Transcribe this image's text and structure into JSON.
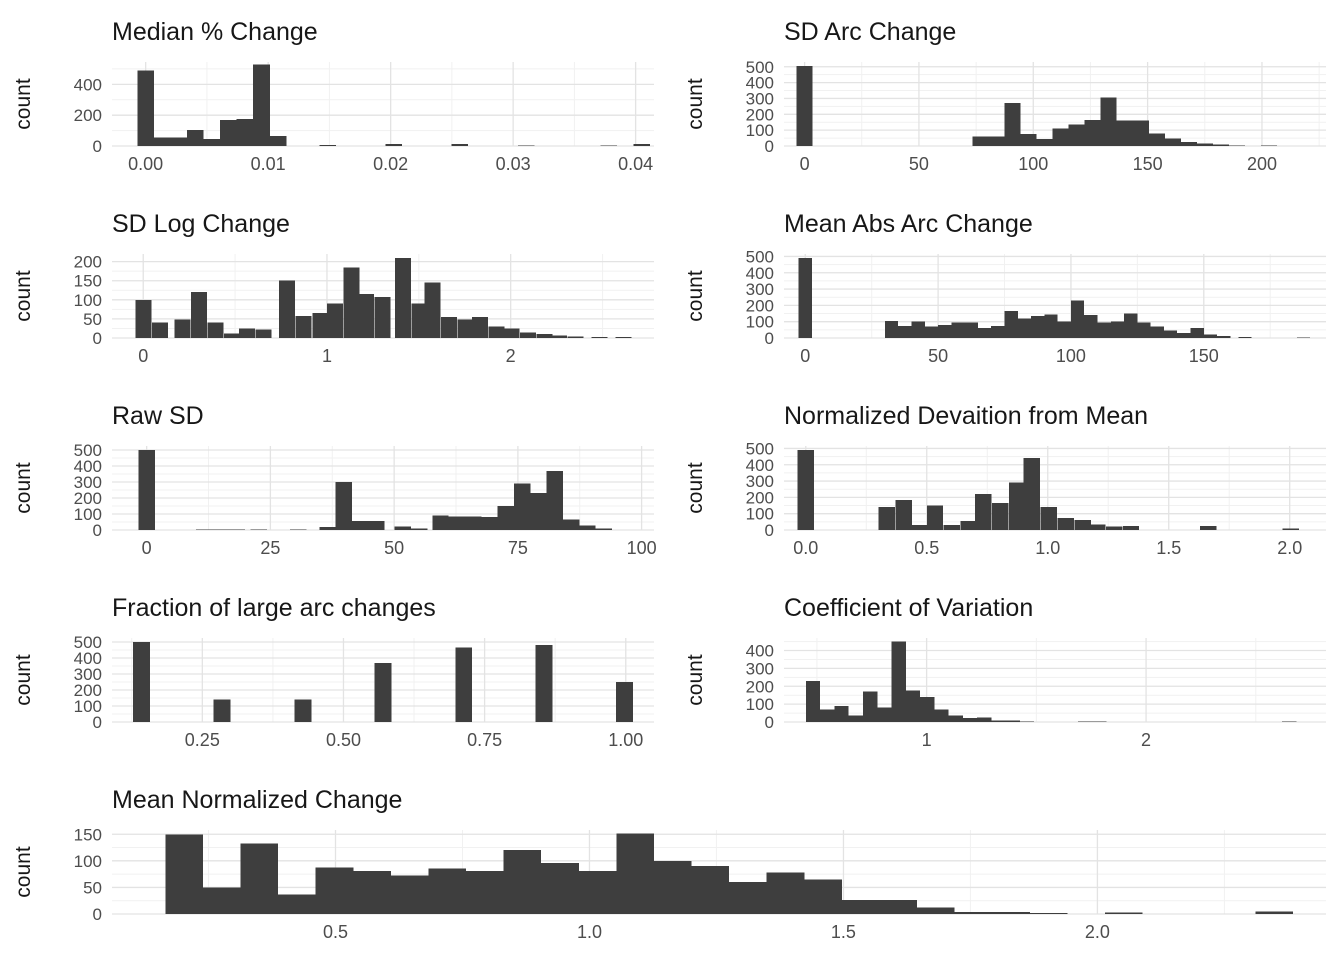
{
  "figure": {
    "description": "Grid of nine histograms of track-change summary statistics",
    "ylabel_shared": "count"
  },
  "colors": {
    "bar": "#3e3e3e",
    "grid_major": "#e3e3e3",
    "grid_minor": "#f1f1f1",
    "tick_text": "#4d4d4d",
    "title_text": "#171717",
    "axis_title_text": "#171717",
    "background": "#ffffff"
  },
  "chart_data": [
    {
      "type": "histogram",
      "title": "Median % Change",
      "ylabel": "count",
      "xlim": [
        -0.00275,
        0.0415
      ],
      "ylim": [
        0,
        545
      ],
      "x_ticks": [
        {
          "v": 0,
          "label": "0.00"
        },
        {
          "v": 0.01,
          "label": "0.01"
        },
        {
          "v": 0.02,
          "label": "0.02"
        },
        {
          "v": 0.03,
          "label": "0.03"
        },
        {
          "v": 0.04,
          "label": "0.04"
        }
      ],
      "y_ticks": [
        {
          "v": 0,
          "label": "0"
        },
        {
          "v": 200,
          "label": "200"
        },
        {
          "v": 400,
          "label": "400"
        }
      ],
      "x_minor_step": 0.005,
      "y_minor_step": 100,
      "bin_width": 0.00135,
      "bars": [
        [
          -0.000675,
          490
        ],
        [
          0.000675,
          55
        ],
        [
          0.00203,
          55
        ],
        [
          0.00338,
          105
        ],
        [
          0.00473,
          45
        ],
        [
          0.00608,
          170
        ],
        [
          0.00743,
          175
        ],
        [
          0.00878,
          530
        ],
        [
          0.01013,
          65
        ],
        [
          0.01418,
          8
        ],
        [
          0.01958,
          12
        ],
        [
          0.02498,
          12
        ],
        [
          0.03038,
          4
        ],
        [
          0.03713,
          4
        ],
        [
          0.03983,
          12
        ]
      ]
    },
    {
      "type": "histogram",
      "title": "SD Arc Change",
      "ylabel": "count",
      "xlim": [
        -9,
        228
      ],
      "ylim": [
        0,
        530
      ],
      "x_ticks": [
        {
          "v": 0,
          "label": "0"
        },
        {
          "v": 50,
          "label": "50"
        },
        {
          "v": 100,
          "label": "100"
        },
        {
          "v": 150,
          "label": "150"
        },
        {
          "v": 200,
          "label": "200"
        }
      ],
      "y_ticks": [
        {
          "v": 0,
          "label": "0"
        },
        {
          "v": 100,
          "label": "100"
        },
        {
          "v": 200,
          "label": "200"
        },
        {
          "v": 300,
          "label": "300"
        },
        {
          "v": 400,
          "label": "400"
        },
        {
          "v": 500,
          "label": "500"
        }
      ],
      "x_minor_step": 25,
      "y_minor_step": 50,
      "bin_width": 7,
      "bars": [
        [
          -3.5,
          505
        ],
        [
          73.5,
          60
        ],
        [
          80.5,
          60
        ],
        [
          87.5,
          270
        ],
        [
          94.5,
          75
        ],
        [
          101.5,
          45
        ],
        [
          108.5,
          110
        ],
        [
          115.5,
          135
        ],
        [
          122.5,
          165
        ],
        [
          129.5,
          305
        ],
        [
          136.5,
          160
        ],
        [
          143.5,
          160
        ],
        [
          150.5,
          80
        ],
        [
          157.5,
          48
        ],
        [
          164.5,
          25
        ],
        [
          171.5,
          15
        ],
        [
          178.5,
          8
        ],
        [
          185.5,
          4
        ],
        [
          199.5,
          3
        ]
      ]
    },
    {
      "type": "histogram",
      "title": "SD Log Change",
      "ylabel": "count",
      "xlim": [
        -0.17,
        2.78
      ],
      "ylim": [
        0,
        220
      ],
      "x_ticks": [
        {
          "v": 0,
          "label": "0"
        },
        {
          "v": 1,
          "label": "1"
        },
        {
          "v": 2,
          "label": "2"
        }
      ],
      "y_ticks": [
        {
          "v": 0,
          "label": "0"
        },
        {
          "v": 50,
          "label": "50"
        },
        {
          "v": 100,
          "label": "100"
        },
        {
          "v": 150,
          "label": "150"
        },
        {
          "v": 200,
          "label": "200"
        }
      ],
      "x_minor_step": 0.5,
      "y_minor_step": 25,
      "bin_width": 0.087,
      "bars": [
        [
          -0.043,
          100
        ],
        [
          0.047,
          40
        ],
        [
          0.17,
          48
        ],
        [
          0.26,
          120
        ],
        [
          0.35,
          40
        ],
        [
          0.44,
          12
        ],
        [
          0.52,
          25
        ],
        [
          0.61,
          22
        ],
        [
          0.74,
          150
        ],
        [
          0.83,
          58
        ],
        [
          0.92,
          65
        ],
        [
          1.0,
          90
        ],
        [
          1.09,
          185
        ],
        [
          1.17,
          115
        ],
        [
          1.26,
          108
        ],
        [
          1.37,
          210
        ],
        [
          1.46,
          90
        ],
        [
          1.53,
          145
        ],
        [
          1.62,
          55
        ],
        [
          1.71,
          48
        ],
        [
          1.79,
          55
        ],
        [
          1.88,
          30
        ],
        [
          1.96,
          25
        ],
        [
          2.05,
          15
        ],
        [
          2.14,
          10
        ],
        [
          2.22,
          6
        ],
        [
          2.31,
          4
        ],
        [
          2.44,
          3
        ],
        [
          2.57,
          3
        ]
      ]
    },
    {
      "type": "histogram",
      "title": "Mean Abs Arc Change",
      "ylabel": "count",
      "xlim": [
        -8,
        196
      ],
      "ylim": [
        0,
        515
      ],
      "x_ticks": [
        {
          "v": 0,
          "label": "0"
        },
        {
          "v": 50,
          "label": "50"
        },
        {
          "v": 100,
          "label": "100"
        },
        {
          "v": 150,
          "label": "150"
        }
      ],
      "y_ticks": [
        {
          "v": 0,
          "label": "0"
        },
        {
          "v": 100,
          "label": "100"
        },
        {
          "v": 200,
          "label": "200"
        },
        {
          "v": 300,
          "label": "300"
        },
        {
          "v": 400,
          "label": "400"
        },
        {
          "v": 500,
          "label": "500"
        }
      ],
      "x_minor_step": 25,
      "y_minor_step": 50,
      "bin_width": 5,
      "bars": [
        [
          -2.5,
          490
        ],
        [
          30,
          105
        ],
        [
          35,
          75
        ],
        [
          40,
          100
        ],
        [
          45,
          70
        ],
        [
          50,
          80
        ],
        [
          55,
          95
        ],
        [
          60,
          95
        ],
        [
          65,
          60
        ],
        [
          70,
          75
        ],
        [
          75,
          165
        ],
        [
          80,
          120
        ],
        [
          85,
          135
        ],
        [
          90,
          145
        ],
        [
          95,
          100
        ],
        [
          100,
          230
        ],
        [
          105,
          140
        ],
        [
          110,
          95
        ],
        [
          115,
          100
        ],
        [
          120,
          150
        ],
        [
          125,
          95
        ],
        [
          130,
          70
        ],
        [
          135,
          45
        ],
        [
          140,
          30
        ],
        [
          145,
          60
        ],
        [
          150,
          20
        ],
        [
          155,
          12
        ],
        [
          163,
          6
        ],
        [
          185,
          4
        ]
      ]
    },
    {
      "type": "histogram",
      "title": "Raw SD",
      "ylabel": "count",
      "xlim": [
        -7,
        102.5
      ],
      "ylim": [
        0,
        525
      ],
      "x_ticks": [
        {
          "v": 0,
          "label": "0"
        },
        {
          "v": 25,
          "label": "25"
        },
        {
          "v": 50,
          "label": "50"
        },
        {
          "v": 75,
          "label": "75"
        },
        {
          "v": 100,
          "label": "100"
        }
      ],
      "y_ticks": [
        {
          "v": 0,
          "label": "0"
        },
        {
          "v": 100,
          "label": "100"
        },
        {
          "v": 200,
          "label": "200"
        },
        {
          "v": 300,
          "label": "300"
        },
        {
          "v": 400,
          "label": "400"
        },
        {
          "v": 500,
          "label": "500"
        }
      ],
      "x_minor_step": 12.5,
      "y_minor_step": 50,
      "bin_width": 3.3,
      "bars": [
        [
          -1.65,
          500
        ],
        [
          10,
          4
        ],
        [
          13.3,
          4
        ],
        [
          16.6,
          4
        ],
        [
          21,
          3
        ],
        [
          29,
          3
        ],
        [
          34.9,
          20
        ],
        [
          38.2,
          300
        ],
        [
          41.5,
          55
        ],
        [
          44.8,
          55
        ],
        [
          50.1,
          22
        ],
        [
          53.4,
          8
        ],
        [
          57.7,
          90
        ],
        [
          61,
          85
        ],
        [
          64.3,
          85
        ],
        [
          67.6,
          80
        ],
        [
          70.9,
          150
        ],
        [
          74.2,
          290
        ],
        [
          77.5,
          230
        ],
        [
          80.8,
          370
        ],
        [
          84.1,
          65
        ],
        [
          87.4,
          28
        ],
        [
          90.7,
          8
        ]
      ]
    },
    {
      "type": "histogram",
      "title": "Normalized Devaition from Mean",
      "ylabel": "count",
      "xlim": [
        -0.09,
        2.15
      ],
      "ylim": [
        0,
        515
      ],
      "x_ticks": [
        {
          "v": 0,
          "label": "0.0"
        },
        {
          "v": 0.5,
          "label": "0.5"
        },
        {
          "v": 1.0,
          "label": "1.0"
        },
        {
          "v": 1.5,
          "label": "1.5"
        },
        {
          "v": 2.0,
          "label": "2.0"
        }
      ],
      "y_ticks": [
        {
          "v": 0,
          "label": "0"
        },
        {
          "v": 100,
          "label": "100"
        },
        {
          "v": 200,
          "label": "200"
        },
        {
          "v": 300,
          "label": "300"
        },
        {
          "v": 400,
          "label": "400"
        },
        {
          "v": 500,
          "label": "500"
        }
      ],
      "x_minor_step": 0.25,
      "y_minor_step": 50,
      "bin_width": 0.068,
      "bars": [
        [
          -0.034,
          490
        ],
        [
          0.3,
          140
        ],
        [
          0.37,
          185
        ],
        [
          0.44,
          30
        ],
        [
          0.5,
          150
        ],
        [
          0.57,
          30
        ],
        [
          0.64,
          55
        ],
        [
          0.7,
          220
        ],
        [
          0.77,
          165
        ],
        [
          0.84,
          290
        ],
        [
          0.9,
          440
        ],
        [
          0.97,
          140
        ],
        [
          1.04,
          75
        ],
        [
          1.11,
          60
        ],
        [
          1.17,
          35
        ],
        [
          1.24,
          20
        ],
        [
          1.31,
          25
        ],
        [
          1.63,
          25
        ],
        [
          1.97,
          10
        ]
      ]
    },
    {
      "type": "histogram",
      "title": "Fraction of large arc changes",
      "ylabel": "count",
      "xlim": [
        0.09,
        1.05
      ],
      "ylim": [
        0,
        525
      ],
      "x_ticks": [
        {
          "v": 0.25,
          "label": "0.25"
        },
        {
          "v": 0.5,
          "label": "0.50"
        },
        {
          "v": 0.75,
          "label": "0.75"
        },
        {
          "v": 1.0,
          "label": "1.00"
        }
      ],
      "y_ticks": [
        {
          "v": 0,
          "label": "0"
        },
        {
          "v": 100,
          "label": "100"
        },
        {
          "v": 200,
          "label": "200"
        },
        {
          "v": 300,
          "label": "300"
        },
        {
          "v": 400,
          "label": "400"
        },
        {
          "v": 500,
          "label": "500"
        }
      ],
      "x_minor_step": 0.125,
      "y_minor_step": 50,
      "bin_width": 0.03,
      "bars": [
        [
          0.127,
          500
        ],
        [
          0.27,
          140
        ],
        [
          0.413,
          140
        ],
        [
          0.555,
          370
        ],
        [
          0.698,
          465
        ],
        [
          0.84,
          480
        ],
        [
          0.983,
          250
        ]
      ]
    },
    {
      "type": "histogram",
      "title": "Coefficient of Variation",
      "ylabel": "count",
      "xlim": [
        0.35,
        2.82
      ],
      "ylim": [
        0,
        470
      ],
      "x_ticks": [
        {
          "v": 1,
          "label": "1"
        },
        {
          "v": 2,
          "label": "2"
        }
      ],
      "y_ticks": [
        {
          "v": 0,
          "label": "0"
        },
        {
          "v": 100,
          "label": "100"
        },
        {
          "v": 200,
          "label": "200"
        },
        {
          "v": 300,
          "label": "300"
        },
        {
          "v": 400,
          "label": "400"
        }
      ],
      "x_minor_step": 0.5,
      "y_minor_step": 50,
      "bin_width": 0.065,
      "bars": [
        [
          0.45,
          230
        ],
        [
          0.515,
          70
        ],
        [
          0.58,
          90
        ],
        [
          0.645,
          36
        ],
        [
          0.71,
          170
        ],
        [
          0.775,
          80
        ],
        [
          0.84,
          450
        ],
        [
          0.905,
          175
        ],
        [
          0.97,
          140
        ],
        [
          1.035,
          70
        ],
        [
          1.1,
          36
        ],
        [
          1.165,
          22
        ],
        [
          1.23,
          25
        ],
        [
          1.295,
          7
        ],
        [
          1.36,
          7
        ],
        [
          1.425,
          4
        ],
        [
          1.69,
          4
        ],
        [
          1.755,
          4
        ],
        [
          2.62,
          4
        ]
      ]
    },
    {
      "type": "histogram",
      "title": "Mean Normalized Change",
      "ylabel": "count",
      "xlim": [
        0.06,
        2.45
      ],
      "ylim": [
        0,
        158
      ],
      "x_ticks": [
        {
          "v": 0.5,
          "label": "0.5"
        },
        {
          "v": 1.0,
          "label": "1.0"
        },
        {
          "v": 1.5,
          "label": "1.5"
        },
        {
          "v": 2.0,
          "label": "2.0"
        }
      ],
      "y_ticks": [
        {
          "v": 0,
          "label": "0"
        },
        {
          "v": 50,
          "label": "50"
        },
        {
          "v": 100,
          "label": "100"
        },
        {
          "v": 150,
          "label": "150"
        }
      ],
      "x_minor_step": 0.25,
      "y_minor_step": 25,
      "bin_width": 0.074,
      "bars": [
        [
          0.165,
          150
        ],
        [
          0.239,
          50
        ],
        [
          0.313,
          133
        ],
        [
          0.387,
          37
        ],
        [
          0.461,
          87
        ],
        [
          0.535,
          81
        ],
        [
          0.609,
          72
        ],
        [
          0.683,
          86
        ],
        [
          0.757,
          81
        ],
        [
          0.831,
          120
        ],
        [
          0.905,
          96
        ],
        [
          0.979,
          81
        ],
        [
          1.053,
          151
        ],
        [
          1.127,
          100
        ],
        [
          1.201,
          90
        ],
        [
          1.275,
          60
        ],
        [
          1.349,
          78
        ],
        [
          1.423,
          65
        ],
        [
          1.497,
          26
        ],
        [
          1.571,
          26
        ],
        [
          1.645,
          12
        ],
        [
          1.719,
          4
        ],
        [
          1.793,
          4
        ],
        [
          1.867,
          2
        ],
        [
          2.015,
          3
        ],
        [
          2.311,
          5
        ]
      ]
    }
  ]
}
